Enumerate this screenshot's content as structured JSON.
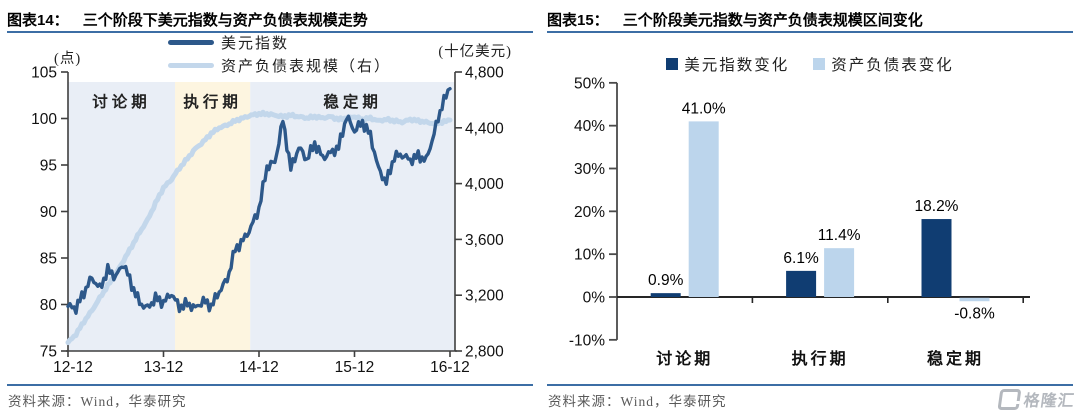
{
  "watermark": {
    "text": "格隆汇"
  },
  "chart_data": [
    {
      "id": "fig14",
      "type": "line",
      "fig_label": "图表14：",
      "title": "三个阶段下美元指数与资产负债表规模走势",
      "left_axis_label": "(点)",
      "right_axis_label": "(十亿美元)",
      "x_tick_labels": [
        "12-12",
        "13-12",
        "14-12",
        "15-12",
        "16-12"
      ],
      "y_left": {
        "min": 75,
        "max": 105,
        "ticks": [
          105,
          100,
          95,
          90,
          85,
          80,
          75
        ]
      },
      "y_right": {
        "min": 2800,
        "max": 4800,
        "ticks": [
          "4,800",
          "4,400",
          "4,000",
          "3,600",
          "3,200",
          "2,800"
        ]
      },
      "phases": [
        {
          "label": "讨论期",
          "start": 0,
          "end": 13.45,
          "color": "#e9eef6"
        },
        {
          "label": "执行期",
          "start": 13.45,
          "end": 22.9,
          "color": "#fdf5e0"
        },
        {
          "label": "稳定期",
          "start": 22.9,
          "end": 48.63,
          "color": "#e9eef6"
        }
      ],
      "series": [
        {
          "name": "资产负债表规模（右）",
          "axis": "right",
          "color": "#c3d7eb",
          "width": 5,
          "values": [
            2860,
            2920,
            3010,
            3090,
            3180,
            3270,
            3350,
            3450,
            3550,
            3650,
            3740,
            3860,
            3970,
            4030,
            4110,
            4180,
            4250,
            4300,
            4360,
            4400,
            4420,
            4450,
            4470,
            4490,
            4500,
            4500,
            4490,
            4480,
            4490,
            4480,
            4470,
            4480,
            4470,
            4480,
            4460,
            4470,
            4480,
            4460,
            4470,
            4450,
            4460,
            4450,
            4440,
            4460,
            4450,
            4440,
            4430,
            4440,
            4455
          ]
        },
        {
          "name": "美元指数",
          "axis": "left",
          "color": "#2d588a",
          "width": 3.4,
          "values": [
            79.8,
            79.6,
            81.3,
            82.9,
            81.7,
            83.7,
            83.0,
            84.4,
            82.1,
            80.2,
            79.6,
            80.7,
            80.2,
            81.2,
            79.7,
            80.1,
            79.6,
            80.4,
            79.8,
            81.4,
            82.7,
            85.9,
            86.9,
            88.3,
            90.3,
            94.8,
            95.3,
            99.8,
            94.6,
            96.9,
            95.6,
            97.3,
            95.8,
            96.3,
            96.9,
            100.2,
            98.7,
            99.6,
            98.2,
            94.6,
            93.1,
            95.9,
            96.1,
            95.5,
            96.0,
            95.5,
            98.4,
            101.5,
            103.2
          ]
        }
      ],
      "source": "资料来源：Wind，华泰研究"
    },
    {
      "id": "fig15",
      "type": "bar",
      "fig_label": "图表15：",
      "title": "三个阶段美元指数与资产负债表规模区间变化",
      "categories": [
        "讨论期",
        "执行期",
        "稳定期"
      ],
      "series": [
        {
          "name": "美元指数变化",
          "color": "#103d72",
          "values": [
            0.9,
            6.1,
            18.2
          ]
        },
        {
          "name": "资产负债表变化",
          "color": "#bcd5ec",
          "values": [
            41.0,
            11.4,
            -0.8
          ]
        }
      ],
      "data_labels": [
        "0.9%",
        "41.0%",
        "6.1%",
        "11.4%",
        "18.2%",
        "-0.8%"
      ],
      "y": {
        "min": -10,
        "max": 50,
        "ticks": [
          "50%",
          "40%",
          "30%",
          "20%",
          "10%",
          "0%",
          "-10%"
        ],
        "tick_values": [
          50,
          40,
          30,
          20,
          10,
          0,
          -10
        ]
      },
      "source": "资料来源：Wind，华泰研究"
    }
  ]
}
